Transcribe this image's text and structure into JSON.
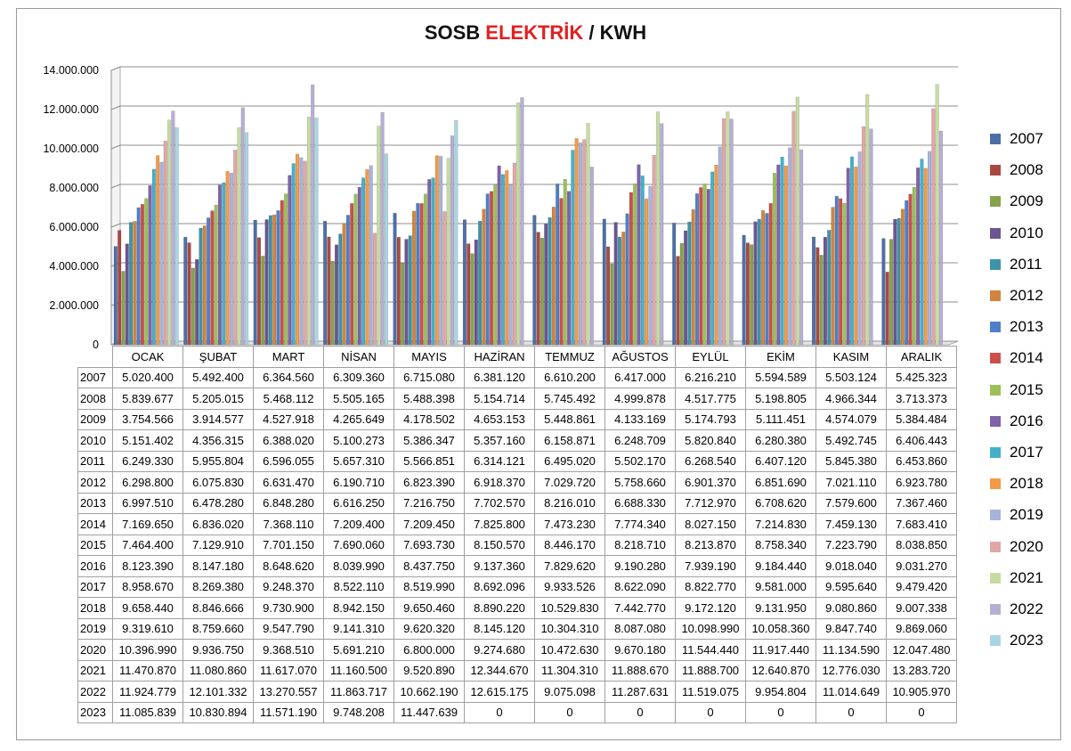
{
  "title": {
    "part1": "SOSB ",
    "accent": "ELEKTRİK",
    "part2": " / KWH"
  },
  "colors": {
    "accent": "#e41f1f"
  },
  "chart_data": {
    "type": "bar",
    "title": "SOSB ELEKTRİK / KWH",
    "categories": [
      "OCAK",
      "ŞUBAT",
      "MART",
      "NİSAN",
      "MAYIS",
      "HAZİRAN",
      "TEMMUZ",
      "AĞUSTOS",
      "EYLÜL",
      "EKİM",
      "KASIM",
      "ARALIK"
    ],
    "ylim": [
      0,
      14000000
    ],
    "yticks": [
      "0",
      "2.000.000",
      "4.000.000",
      "6.000.000",
      "8.000.000",
      "10.000.000",
      "12.000.000",
      "14.000.000"
    ],
    "grid": true,
    "legend_position": "right",
    "series": [
      {
        "name": "2007",
        "color": "#4e6fa6",
        "values": [
          5020400,
          5492400,
          6364560,
          6309360,
          6715080,
          6381120,
          6610200,
          6417000,
          6216210,
          5594589,
          5503124,
          5425323
        ],
        "labels": [
          "5.020.400",
          "5.492.400",
          "6.364.560",
          "6.309.360",
          "6.715.080",
          "6.381.120",
          "6.610.200",
          "6.417.000",
          "6.216.210",
          "5.594.589",
          "5.503.124",
          "5.425.323"
        ]
      },
      {
        "name": "2008",
        "color": "#a84a44",
        "values": [
          5839677,
          5205015,
          5468112,
          5505165,
          5488398,
          5154714,
          5745492,
          4999878,
          4517775,
          5198805,
          4966344,
          3713373
        ],
        "labels": [
          "5.839.677",
          "5.205.015",
          "5.468.112",
          "5.505.165",
          "5.488.398",
          "5.154.714",
          "5.745.492",
          "4.999.878",
          "4.517.775",
          "5.198.805",
          "4.966.344",
          "3.713.373"
        ]
      },
      {
        "name": "2009",
        "color": "#86a24c",
        "values": [
          3754566,
          3914577,
          4527918,
          4265649,
          4178502,
          4653153,
          5448861,
          4133169,
          5174793,
          5111451,
          4574079,
          5384484
        ],
        "labels": [
          "3.754.566",
          "3.914.577",
          "4.527.918",
          "4.265.649",
          "4.178.502",
          "4.653.153",
          "5.448.861",
          "4.133.169",
          "5.174.793",
          "5.111.451",
          "4.574.079",
          "5.384.484"
        ]
      },
      {
        "name": "2010",
        "color": "#6b5592",
        "values": [
          5151402,
          4356315,
          6388020,
          5100273,
          5386347,
          5357160,
          6158871,
          6248709,
          5820840,
          6280380,
          5492745,
          6406443
        ],
        "labels": [
          "5.151.402",
          "4.356.315",
          "6.388.020",
          "5.100.273",
          "5.386.347",
          "5.357.160",
          "6.158.871",
          "6.248.709",
          "5.820.840",
          "6.280.380",
          "5.492.745",
          "6.406.443"
        ]
      },
      {
        "name": "2011",
        "color": "#3e93aa",
        "values": [
          6249330,
          5955804,
          6596055,
          5657310,
          5566851,
          6314121,
          6495020,
          5502170,
          6268540,
          6407120,
          5845380,
          6453860
        ],
        "labels": [
          "6.249.330",
          "5.955.804",
          "6.596.055",
          "5.657.310",
          "5.566.851",
          "6.314.121",
          "6.495.020",
          "5.502.170",
          "6.268.540",
          "6.407.120",
          "5.845.380",
          "6.453.860"
        ]
      },
      {
        "name": "2012",
        "color": "#d2843e",
        "values": [
          6298800,
          6075830,
          6631470,
          6190710,
          6823390,
          6918370,
          7029720,
          5758660,
          6901370,
          6851690,
          7021110,
          6923780
        ],
        "labels": [
          "6.298.800",
          "6.075.830",
          "6.631.470",
          "6.190.710",
          "6.823.390",
          "6.918.370",
          "7.029.720",
          "5.758.660",
          "6.901.370",
          "6.851.690",
          "7.021.110",
          "6.923.780"
        ]
      },
      {
        "name": "2013",
        "color": "#4f7fc7",
        "values": [
          6997510,
          6478280,
          6848280,
          6616250,
          7216750,
          7702570,
          8216010,
          6688330,
          7712970,
          6708620,
          7579600,
          7367460
        ],
        "labels": [
          "6.997.510",
          "6.478.280",
          "6.848.280",
          "6.616.250",
          "7.216.750",
          "7.702.570",
          "8.216.010",
          "6.688.330",
          "7.712.970",
          "6.708.620",
          "7.579.600",
          "7.367.460"
        ]
      },
      {
        "name": "2014",
        "color": "#cc504a",
        "values": [
          7169650,
          6836020,
          7368110,
          7209400,
          7209450,
          7825800,
          7473230,
          7774340,
          8027150,
          7214830,
          7459130,
          7683410
        ],
        "labels": [
          "7.169.650",
          "6.836.020",
          "7.368.110",
          "7.209.400",
          "7.209.450",
          "7.825.800",
          "7.473.230",
          "7.774.340",
          "8.027.150",
          "7.214.830",
          "7.459.130",
          "7.683.410"
        ]
      },
      {
        "name": "2015",
        "color": "#9cc05a",
        "values": [
          7464400,
          7129910,
          7701150,
          7690060,
          7693730,
          8150570,
          8446170,
          8218710,
          8213870,
          8758340,
          7223790,
          8038850
        ],
        "labels": [
          "7.464.400",
          "7.129.910",
          "7.701.150",
          "7.690.060",
          "7.693.730",
          "8.150.570",
          "8.446.170",
          "8.218.710",
          "8.213.870",
          "8.758.340",
          "7.223.790",
          "8.038.850"
        ]
      },
      {
        "name": "2016",
        "color": "#7e63a8",
        "values": [
          8123390,
          8147180,
          8648620,
          8039990,
          8437750,
          9137360,
          7829620,
          9190280,
          7939190,
          9184440,
          9018040,
          9031270
        ],
        "labels": [
          "8.123.390",
          "8.147.180",
          "8.648.620",
          "8.039.990",
          "8.437.750",
          "9.137.360",
          "7.829.620",
          "9.190.280",
          "7.939.190",
          "9.184.440",
          "9.018.040",
          "9.031.270"
        ]
      },
      {
        "name": "2017",
        "color": "#45b0cc",
        "values": [
          8958670,
          8269380,
          9248370,
          8522110,
          8519990,
          8692096,
          9933526,
          8622090,
          8822770,
          9581000,
          9595640,
          9479420
        ],
        "labels": [
          "8.958.670",
          "8.269.380",
          "9.248.370",
          "8.522.110",
          "8.519.990",
          "8.692.096",
          "9.933.526",
          "8.622.090",
          "8.822.770",
          "9.581.000",
          "9.595.640",
          "9.479.420"
        ]
      },
      {
        "name": "2018",
        "color": "#f39a48",
        "values": [
          9658440,
          8846666,
          9730900,
          8942150,
          9650460,
          8890220,
          10529830,
          7442770,
          9172120,
          9131950,
          9080860,
          9007338
        ],
        "labels": [
          "9.658.440",
          "8.846.666",
          "9.730.900",
          "8.942.150",
          "9.650.460",
          "8.890.220",
          "10.529.830",
          "7.442.770",
          "9.172.120",
          "9.131.950",
          "9.080.860",
          "9.007.338"
        ]
      },
      {
        "name": "2019",
        "color": "#a7b3dc",
        "values": [
          9319610,
          8759660,
          9547790,
          9141310,
          9620320,
          8145120,
          10304310,
          8087080,
          10098990,
          10058360,
          9847740,
          9869060
        ],
        "labels": [
          "9.319.610",
          "8.759.660",
          "9.547.790",
          "9.141.310",
          "9.620.320",
          "8.145.120",
          "10.304.310",
          "8.087.080",
          "10.098.990",
          "10.058.360",
          "9.847.740",
          "9.869.060"
        ]
      },
      {
        "name": "2020",
        "color": "#e0a7a5",
        "values": [
          10396990,
          9936750,
          9368510,
          5691210,
          6800000,
          9274680,
          10472630,
          9670180,
          11544440,
          11917440,
          11134590,
          12047480
        ],
        "labels": [
          "10.396.990",
          "9.936.750",
          "9.368.510",
          "5.691.210",
          "6.800.000",
          "9.274.680",
          "10.472.630",
          "9.670.180",
          "11.544.440",
          "11.917.440",
          "11.134.590",
          "12.047.480"
        ]
      },
      {
        "name": "2021",
        "color": "#c6dba3",
        "values": [
          11470870,
          11080860,
          11617070,
          11160500,
          9520890,
          12344670,
          11304310,
          11888670,
          11888700,
          12640870,
          12776030,
          13283720
        ],
        "labels": [
          "11.470.870",
          "11.080.860",
          "11.617.070",
          "11.160.500",
          "9.520.890",
          "12.344.670",
          "11.304.310",
          "11.888.670",
          "11.888.700",
          "12.640.870",
          "12.776.030",
          "13.283.720"
        ]
      },
      {
        "name": "2022",
        "color": "#b6aed3",
        "values": [
          11924779,
          12101332,
          13270557,
          11863717,
          10662190,
          12615175,
          9075098,
          11287631,
          11519075,
          9954804,
          11014649,
          10905970
        ],
        "labels": [
          "11.924.779",
          "12.101.332",
          "13.270.557",
          "11.863.717",
          "10.662.190",
          "12.615.175",
          "9.075.098",
          "11.287.631",
          "11.519.075",
          "9.954.804",
          "11.014.649",
          "10.905.970"
        ]
      },
      {
        "name": "2023",
        "color": "#a9d5e2",
        "values": [
          11085839,
          10830894,
          11571190,
          9748208,
          11447639,
          0,
          0,
          0,
          0,
          0,
          0,
          0
        ],
        "labels": [
          "11.085.839",
          "10.830.894",
          "11.571.190",
          "9.748.208",
          "11.447.639",
          "0",
          "0",
          "0",
          "0",
          "0",
          "0",
          "0"
        ]
      }
    ]
  }
}
